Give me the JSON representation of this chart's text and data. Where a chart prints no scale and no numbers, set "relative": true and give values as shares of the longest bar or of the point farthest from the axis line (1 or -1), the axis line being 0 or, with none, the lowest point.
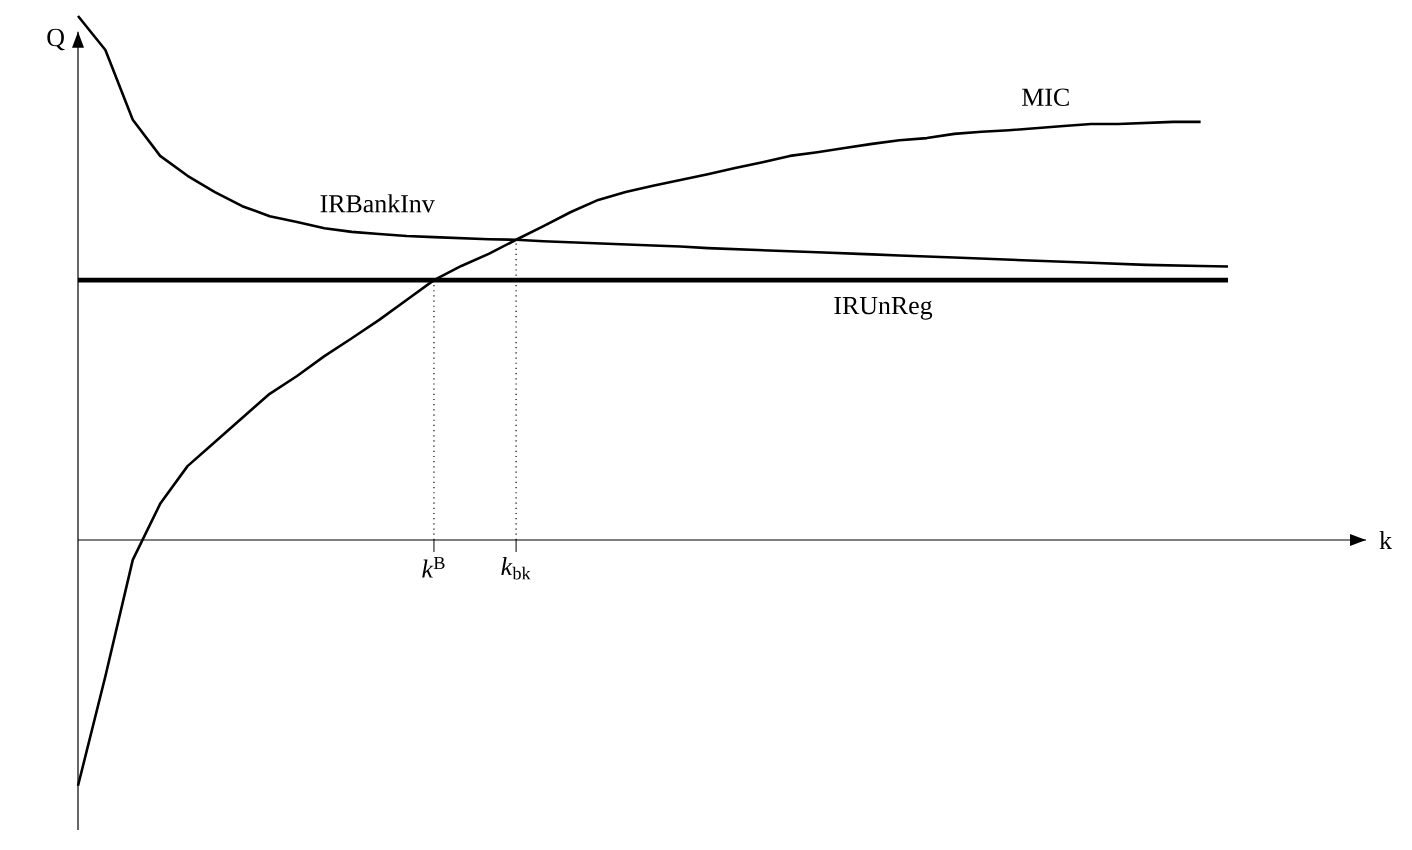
{
  "chart_data": {
    "type": "line",
    "relative": true,
    "ylabel": "Q",
    "marker": "none",
    "line_style": "solid",
    "categories": [
      null,
      null,
      null,
      null,
      null,
      null,
      null,
      null,
      null,
      null,
      null,
      null,
      null,
      null,
      null,
      null,
      null,
      null,
      null,
      null,
      null,
      null,
      null,
      null,
      null,
      null,
      null,
      null,
      null,
      null,
      null,
      null,
      null,
      null,
      null,
      null,
      null,
      null,
      null,
      null,
      null,
      null,
      null
    ],
    "series": [
      {
        "name": "IRBankInv",
        "color": "#000000",
        "values": [
          1,
          0.935,
          0.802,
          0.733,
          0.695,
          0.664,
          0.637,
          0.618,
          0.607,
          0.595,
          0.588,
          0.584,
          0.58,
          0.578,
          0.576,
          0.574,
          0.573,
          0.57,
          0.568,
          0.566,
          0.564,
          0.562,
          0.56,
          0.557,
          0.555,
          0.553,
          0.551,
          0.549,
          0.547,
          0.545,
          0.543,
          0.541,
          0.539,
          0.537,
          0.535,
          0.533,
          0.531,
          0.529,
          0.527,
          0.525,
          0.524,
          0.523,
          0.522
        ]
      },
      {
        "name": "MIC",
        "color": "#000000",
        "values": [
          -0.469,
          -0.26,
          -0.038,
          0.069,
          0.141,
          0.187,
          0.233,
          0.279,
          0.313,
          0.351,
          0.385,
          0.42,
          0.458,
          0.496,
          0.523,
          0.546,
          0.573,
          0.599,
          0.626,
          0.649,
          0.664,
          0.676,
          0.687,
          0.698,
          0.71,
          0.721,
          0.733,
          0.74,
          0.748,
          0.756,
          0.763,
          0.767,
          0.775,
          0.779,
          0.782,
          0.786,
          0.79,
          0.794,
          0.794,
          0.796,
          0.798,
          0.798,
          null
        ]
      },
      {
        "name": "IRUnReg",
        "color": "#000000",
        "values": [
          0.496,
          0.496,
          0.496,
          0.496,
          0.496,
          0.496,
          0.496,
          0.496,
          0.496,
          0.496,
          0.496,
          0.496,
          0.496,
          0.496,
          0.496,
          0.496,
          0.496,
          0.496,
          0.496,
          0.496,
          0.496,
          0.496,
          0.496,
          0.496,
          0.496,
          0.496,
          0.496,
          0.496,
          0.496,
          0.496,
          0.496,
          0.496,
          0.496,
          0.496,
          0.496,
          0.496,
          0.496,
          0.496,
          0.496,
          0.496,
          0.496,
          0.496,
          0.496
        ]
      }
    ],
    "annotations": [
      "*k*$^{B}$",
      "*k*$_{bk}$",
      "k"
    ]
  }
}
